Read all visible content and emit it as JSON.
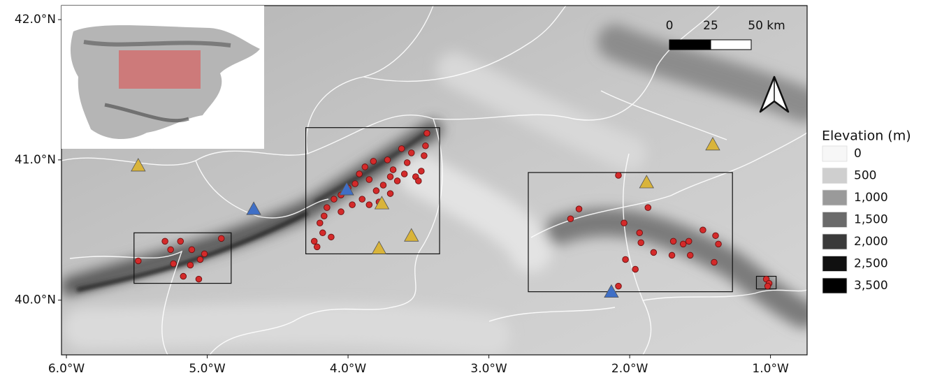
{
  "map": {
    "xlim": [
      -6.035,
      -0.74
    ],
    "ylim": [
      39.61,
      42.1
    ],
    "xticks": [
      {
        "value": -6,
        "label": "6.0°W"
      },
      {
        "value": -5,
        "label": "5.0°W"
      },
      {
        "value": -4,
        "label": "4.0°W"
      },
      {
        "value": -3,
        "label": "3.0°W"
      },
      {
        "value": -2,
        "label": "2.0°W"
      },
      {
        "value": -1,
        "label": "1.0°W"
      }
    ],
    "yticks": [
      {
        "value": 40,
        "label": "40.0°N"
      },
      {
        "value": 41,
        "label": "41.0°N"
      },
      {
        "value": 42,
        "label": "42.0°N"
      }
    ],
    "scale_bar": {
      "labels": [
        "0",
        "25",
        "50 km"
      ]
    },
    "legend": {
      "title": "Elevation (m)",
      "entries": [
        {
          "label": "0",
          "color": "#f7f7f7"
        },
        {
          "label": "500",
          "color": "#cfcfcf"
        },
        {
          "label": "1,000",
          "color": "#9a9a9a"
        },
        {
          "label": "1,500",
          "color": "#6a6a6a"
        },
        {
          "label": "2,000",
          "color": "#3a3a3a"
        },
        {
          "label": "2,500",
          "color": "#101010"
        },
        {
          "label": "3,500",
          "color": "#000000"
        }
      ]
    },
    "study_areas": [
      [
        -5.52,
        40.12,
        -4.83,
        40.48
      ],
      [
        -4.3,
        40.33,
        -3.35,
        41.23
      ],
      [
        -2.72,
        40.06,
        -1.27,
        40.91
      ],
      [
        -1.1,
        40.08,
        -0.96,
        40.17
      ]
    ],
    "sites": {
      "color": "#d42a2a",
      "points": [
        [
          -5.49,
          40.28
        ],
        [
          -5.3,
          40.42
        ],
        [
          -5.26,
          40.36
        ],
        [
          -5.11,
          40.36
        ],
        [
          -5.02,
          40.33
        ],
        [
          -5.24,
          40.26
        ],
        [
          -5.12,
          40.25
        ],
        [
          -5.05,
          40.29
        ],
        [
          -5.17,
          40.17
        ],
        [
          -5.06,
          40.15
        ],
        [
          -4.9,
          40.44
        ],
        [
          -5.19,
          40.42
        ],
        [
          -4.22,
          40.38
        ],
        [
          -4.24,
          40.42
        ],
        [
          -4.18,
          40.48
        ],
        [
          -4.2,
          40.55
        ],
        [
          -4.17,
          40.6
        ],
        [
          -4.12,
          40.45
        ],
        [
          -4.15,
          40.66
        ],
        [
          -4.1,
          40.72
        ],
        [
          -4.05,
          40.75
        ],
        [
          -4.0,
          40.8
        ],
        [
          -3.95,
          40.83
        ],
        [
          -3.92,
          40.9
        ],
        [
          -3.88,
          40.95
        ],
        [
          -3.85,
          40.86
        ],
        [
          -3.8,
          40.78
        ],
        [
          -3.78,
          40.7
        ],
        [
          -3.75,
          40.82
        ],
        [
          -3.7,
          40.88
        ],
        [
          -3.68,
          40.93
        ],
        [
          -3.65,
          40.85
        ],
        [
          -3.6,
          40.9
        ],
        [
          -3.58,
          40.98
        ],
        [
          -3.55,
          41.05
        ],
        [
          -3.52,
          40.88
        ],
        [
          -3.48,
          40.92
        ],
        [
          -3.46,
          41.03
        ],
        [
          -3.45,
          41.1
        ],
        [
          -3.44,
          41.19
        ],
        [
          -3.62,
          41.08
        ],
        [
          -3.72,
          41.0
        ],
        [
          -3.82,
          40.99
        ],
        [
          -3.9,
          40.72
        ],
        [
          -3.97,
          40.68
        ],
        [
          -4.05,
          40.63
        ],
        [
          -3.85,
          40.68
        ],
        [
          -3.7,
          40.76
        ],
        [
          -3.5,
          40.85
        ],
        [
          -2.08,
          40.89
        ],
        [
          -2.36,
          40.65
        ],
        [
          -2.42,
          40.58
        ],
        [
          -2.04,
          40.55
        ],
        [
          -1.87,
          40.66
        ],
        [
          -1.93,
          40.48
        ],
        [
          -1.92,
          40.41
        ],
        [
          -1.83,
          40.34
        ],
        [
          -2.03,
          40.29
        ],
        [
          -1.96,
          40.22
        ],
        [
          -1.69,
          40.42
        ],
        [
          -1.62,
          40.4
        ],
        [
          -1.58,
          40.42
        ],
        [
          -1.48,
          40.5
        ],
        [
          -1.39,
          40.46
        ],
        [
          -1.37,
          40.4
        ],
        [
          -1.57,
          40.32
        ],
        [
          -1.4,
          40.27
        ],
        [
          -2.08,
          40.1
        ],
        [
          -1.7,
          40.32
        ],
        [
          -1.03,
          40.15
        ],
        [
          -1.01,
          40.12
        ],
        [
          -1.02,
          40.1
        ]
      ]
    },
    "stations_yellow": {
      "color": "#d9b43a",
      "points": [
        [
          -5.49,
          40.96
        ],
        [
          -3.76,
          40.69
        ],
        [
          -3.78,
          40.37
        ],
        [
          -3.55,
          40.46
        ],
        [
          -1.88,
          40.84
        ],
        [
          -1.41,
          41.11
        ]
      ]
    },
    "stations_blue": {
      "color": "#3f6fc6",
      "points": [
        [
          -4.67,
          40.65
        ],
        [
          -4.01,
          40.79
        ],
        [
          -2.13,
          40.06
        ]
      ]
    }
  }
}
